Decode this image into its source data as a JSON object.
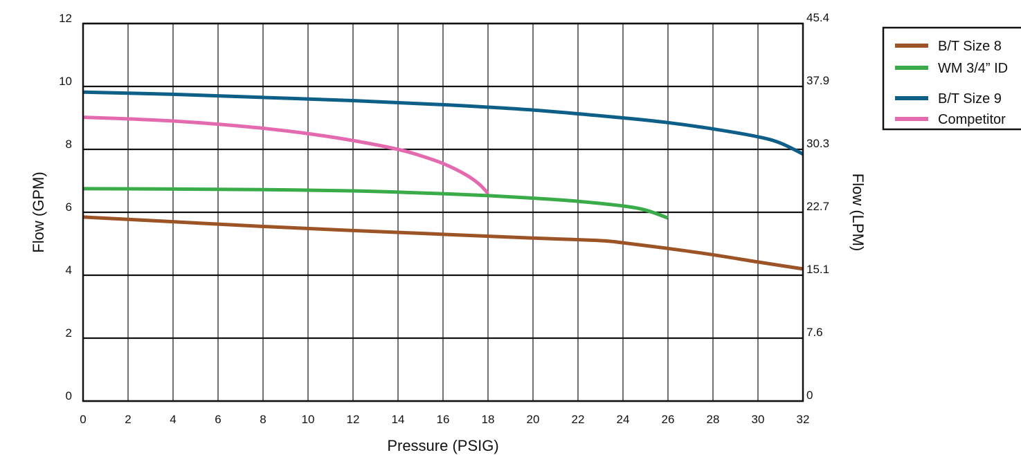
{
  "chart_data": {
    "type": "line",
    "xlabel": "Pressure (PSIG)",
    "ylabel": "Flow (GPM)",
    "y2label": "Flow (LPM)",
    "xlim": [
      0,
      32
    ],
    "ylim": [
      0,
      12
    ],
    "x_ticks": [
      "0",
      "2",
      "4",
      "6",
      "8",
      "10",
      "12",
      "14",
      "16",
      "18",
      "20",
      "22",
      "24",
      "26",
      "28",
      "30",
      "32"
    ],
    "y_ticks": [
      "0",
      "2",
      "4",
      "6",
      "8",
      "10",
      "12"
    ],
    "y2_ticks": [
      "0",
      "7.6",
      "15.1",
      "22.7",
      "30.3",
      "37.9",
      "45.4"
    ],
    "grid": true,
    "legend_position": "top-right",
    "series": [
      {
        "name": "B/T Size 8",
        "color": "#9c5427",
        "x": [
          0,
          4,
          8,
          12,
          16,
          20,
          23,
          24,
          26,
          28,
          30,
          32
        ],
        "y": [
          5.85,
          5.7,
          5.55,
          5.42,
          5.3,
          5.18,
          5.1,
          5.03,
          4.85,
          4.65,
          4.42,
          4.2
        ]
      },
      {
        "name": "WM 3/4” ID",
        "color": "#3aab49",
        "x": [
          0,
          4,
          8,
          12,
          14,
          16,
          18,
          20,
          22,
          24,
          25,
          26
        ],
        "y": [
          6.75,
          6.74,
          6.72,
          6.68,
          6.64,
          6.59,
          6.53,
          6.45,
          6.35,
          6.2,
          6.07,
          5.82
        ]
      },
      {
        "name": "B/T Size 9",
        "color": "#0e5f87",
        "x": [
          0,
          4,
          8,
          12,
          16,
          20,
          24,
          26,
          28,
          30,
          31,
          32
        ],
        "y": [
          9.82,
          9.75,
          9.65,
          9.55,
          9.42,
          9.25,
          9.0,
          8.85,
          8.65,
          8.4,
          8.2,
          7.85
        ]
      },
      {
        "name": "Competitor",
        "color": "#e46ab0",
        "x": [
          0,
          2,
          4,
          6,
          8,
          10,
          12,
          14,
          15,
          16,
          17,
          17.6,
          18
        ],
        "y": [
          9.02,
          8.97,
          8.9,
          8.8,
          8.67,
          8.5,
          8.28,
          8.0,
          7.8,
          7.55,
          7.2,
          6.9,
          6.6
        ]
      }
    ]
  }
}
